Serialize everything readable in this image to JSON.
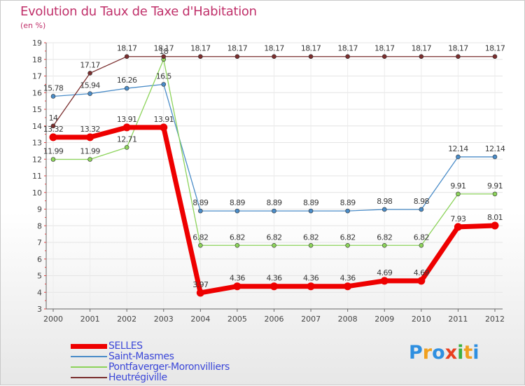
{
  "chart_data": {
    "type": "line",
    "title": "Evolution du Taux de Taxe d'Habitation",
    "ylabel": "(en %)",
    "xlabel": "",
    "categories": [
      "2000",
      "2001",
      "2002",
      "2003",
      "2004",
      "2005",
      "2006",
      "2007",
      "2008",
      "2009",
      "2010",
      "2011",
      "2012"
    ],
    "ylim": [
      3,
      19
    ],
    "yticks": [
      3,
      4,
      5,
      6,
      7,
      8,
      9,
      10,
      11,
      12,
      13,
      14,
      15,
      16,
      17,
      18,
      19
    ],
    "grid": true,
    "legend_position": "bottom-left",
    "series": [
      {
        "name": "SELLES",
        "color": "#ee0000",
        "width": 7,
        "values": [
          13.32,
          13.32,
          13.91,
          13.91,
          3.97,
          4.36,
          4.36,
          4.36,
          4.36,
          4.69,
          4.69,
          7.93,
          8.01
        ],
        "labels": [
          "13.32",
          "13.32",
          "13.91",
          "13.91",
          "3.97",
          "4.36",
          "4.36",
          "4.36",
          "4.36",
          "4.69",
          "4.69",
          "7.93",
          "8.01"
        ]
      },
      {
        "name": "Saint-Masmes",
        "color": "#4a8cc8",
        "width": 1.3,
        "values": [
          15.78,
          15.94,
          16.26,
          16.5,
          8.89,
          8.89,
          8.89,
          8.89,
          8.89,
          8.98,
          8.98,
          12.14,
          12.14
        ],
        "labels": [
          "15.78",
          "15.94",
          "16.26",
          "16.5",
          "8.89",
          "8.89",
          "8.89",
          "8.89",
          "8.89",
          "8.98",
          "8.98",
          "12.14",
          "12.14"
        ]
      },
      {
        "name": "Pontfaverger-Moronvilliers",
        "color": "#8cd35a",
        "width": 1.3,
        "values": [
          11.99,
          11.99,
          12.71,
          18,
          6.82,
          6.82,
          6.82,
          6.82,
          6.82,
          6.82,
          6.82,
          9.91,
          9.91
        ],
        "labels": [
          "11.99",
          "11.99",
          "12.71",
          "18",
          "6.82",
          "6.82",
          "6.82",
          "6.82",
          "6.82",
          "6.82",
          "6.82",
          "9.91",
          "9.91"
        ]
      },
      {
        "name": "Heutrégiville",
        "color": "#7a2e2e",
        "width": 1.3,
        "values": [
          14,
          17.17,
          18.17,
          18.17,
          18.17,
          18.17,
          18.17,
          18.17,
          18.17,
          18.17,
          18.17,
          18.17,
          18.17
        ],
        "labels": [
          "14",
          "17.17",
          "18.17",
          "18.17",
          "18.17",
          "18.17",
          "18.17",
          "18.17",
          "18.17",
          "18.17",
          "18.17",
          "18.17",
          "18.17"
        ]
      }
    ]
  },
  "brand": {
    "letters": [
      "P",
      "r",
      "o",
      "x",
      "i",
      "t",
      "i"
    ],
    "colors": [
      "#2f8fe0",
      "#f0a020",
      "#2f8fe0",
      "#e84020",
      "#3cb040",
      "#f0a020",
      "#2f8fe0"
    ]
  }
}
